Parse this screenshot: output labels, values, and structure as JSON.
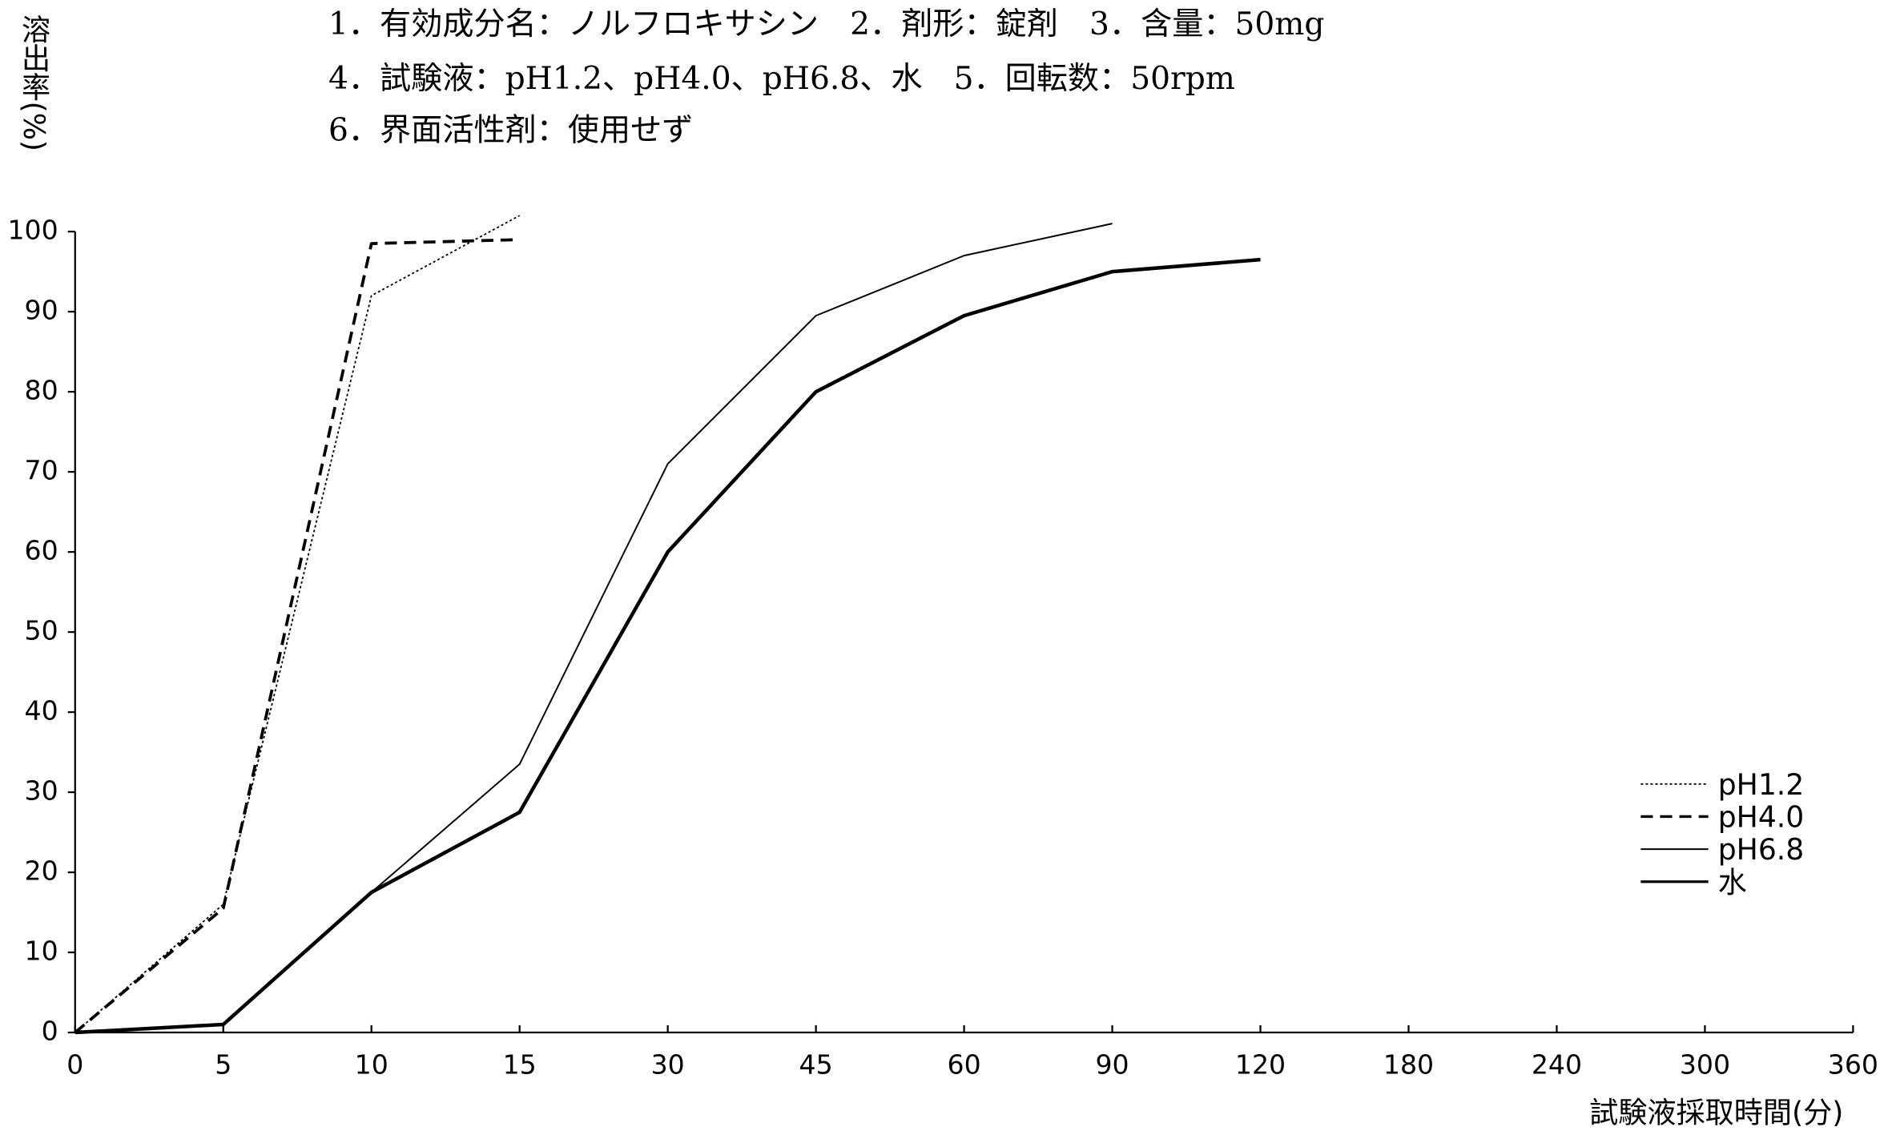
{
  "chart_data": {
    "type": "line",
    "header": [
      "1．有効成分名：ノルフロキサシン　2．剤形：錠剤　3．含量：50mg",
      "4．試験液：pH1.2、pH4.0、pH6.8、水　5．回転数：50rpm",
      "6．界面活性剤：使用せず"
    ],
    "y_label": "溶出率(%)",
    "x_label": "試験液採取時間(分)",
    "categories": [
      0,
      5,
      10,
      15,
      30,
      45,
      60,
      90,
      120,
      180,
      240,
      300,
      360
    ],
    "ylim": [
      0,
      100
    ],
    "yticks": [
      0,
      10,
      20,
      30,
      40,
      50,
      60,
      70,
      80,
      90,
      100
    ],
    "legend": "right",
    "series": [
      {
        "name": "pH1.2",
        "color": "#000000",
        "line_style": "dotted",
        "line_width": 1.2,
        "values": [
          0,
          16,
          92,
          102,
          null,
          null,
          null,
          null,
          null,
          null,
          null,
          null,
          null
        ]
      },
      {
        "name": "pH4.0",
        "color": "#000000",
        "line_style": "dashed",
        "line_width": 2.5,
        "values": [
          0,
          15.5,
          98.5,
          99,
          null,
          null,
          null,
          null,
          null,
          null,
          null,
          null,
          null
        ]
      },
      {
        "name": "pH6.8",
        "color": "#000000",
        "line_style": "solid",
        "line_width": 1.3,
        "values": [
          0,
          1,
          17.5,
          33.5,
          71,
          89.5,
          97,
          101,
          null,
          null,
          null,
          null,
          null
        ]
      },
      {
        "name": "水",
        "color": "#000000",
        "line_style": "solid",
        "line_width": 3,
        "values": [
          0,
          1,
          17.5,
          27.5,
          60,
          80,
          89.5,
          95,
          96.5,
          null,
          null,
          null,
          null
        ]
      }
    ]
  }
}
